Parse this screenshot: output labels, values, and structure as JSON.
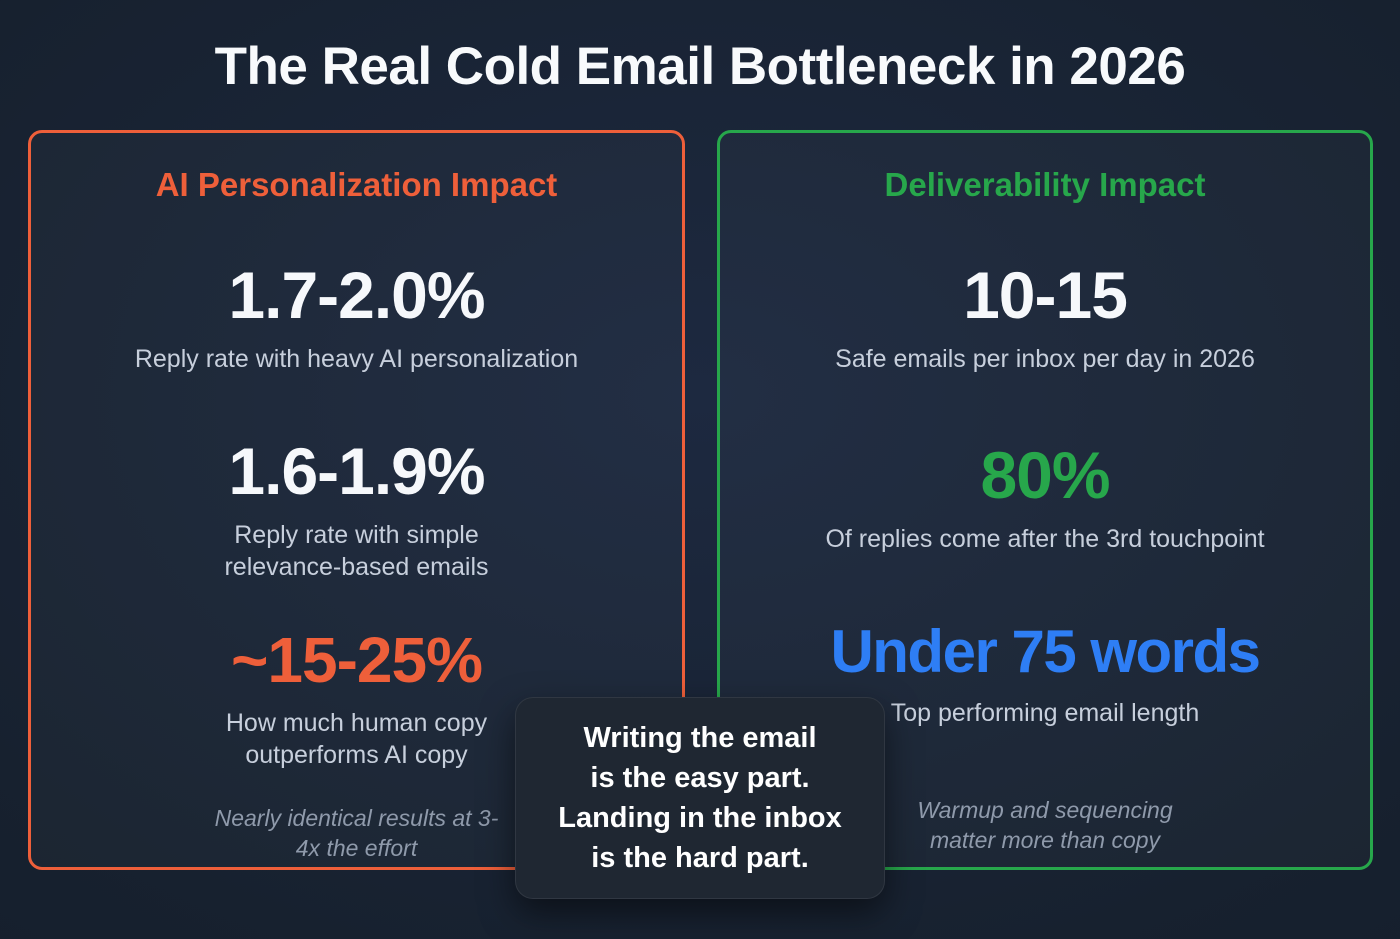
{
  "page": {
    "title": "The Real Cold Email Bottleneck in 2026"
  },
  "colors": {
    "background": "#17212f",
    "card_background": "#1b2536",
    "orange_accent": "#ee5f3a",
    "green_accent": "#27a74b",
    "blue_accent": "#2e7ef5",
    "heading_white": "#f6f8fb",
    "label_gray": "#c7cfdc",
    "note_gray": "#8f9aab",
    "callout_background": "#1f2732"
  },
  "left_card": {
    "heading": "AI Personalization Impact",
    "stats": [
      {
        "value": "1.7-2.0%",
        "label": "Reply rate with heavy AI personalization"
      },
      {
        "value": "1.6-1.9%",
        "label": "Reply rate with simple relevance-based emails"
      },
      {
        "value": "~15-25%",
        "label": "How much human copy outperforms AI copy"
      }
    ],
    "note": "Nearly identical results at 3-4x the effort"
  },
  "right_card": {
    "heading": "Deliverability Impact",
    "stats": [
      {
        "value": "10-15",
        "label": "Safe emails per inbox per day in 2026"
      },
      {
        "value": "80%",
        "label": "Of replies come after the 3rd touchpoint"
      },
      {
        "value": "Under 75 words",
        "label": "Top performing email length"
      }
    ],
    "note": "Warmup and sequencing matter more than copy"
  },
  "callout": {
    "lines": [
      "Writing the email",
      "is the easy part.",
      "Landing in the inbox",
      "is the hard part."
    ]
  },
  "chart_data": {
    "type": "table",
    "title": "The Real Cold Email Bottleneck in 2026",
    "series": [
      {
        "name": "AI Personalization Impact",
        "values": [
          {
            "metric": "Reply rate with heavy AI personalization",
            "value": "1.7-2.0%"
          },
          {
            "metric": "Reply rate with simple relevance-based emails",
            "value": "1.6-1.9%"
          },
          {
            "metric": "How much human copy outperforms AI copy",
            "value": "~15-25%"
          }
        ],
        "note": "Nearly identical results at 3-4x the effort"
      },
      {
        "name": "Deliverability Impact",
        "values": [
          {
            "metric": "Safe emails per inbox per day in 2026",
            "value": "10-15"
          },
          {
            "metric": "Of replies come after the 3rd touchpoint",
            "value": "80%"
          },
          {
            "metric": "Top performing email length",
            "value": "Under 75 words"
          }
        ],
        "note": "Warmup and sequencing matter more than copy"
      }
    ],
    "annotation": "Writing the email is the easy part. Landing in the inbox is the hard part."
  }
}
